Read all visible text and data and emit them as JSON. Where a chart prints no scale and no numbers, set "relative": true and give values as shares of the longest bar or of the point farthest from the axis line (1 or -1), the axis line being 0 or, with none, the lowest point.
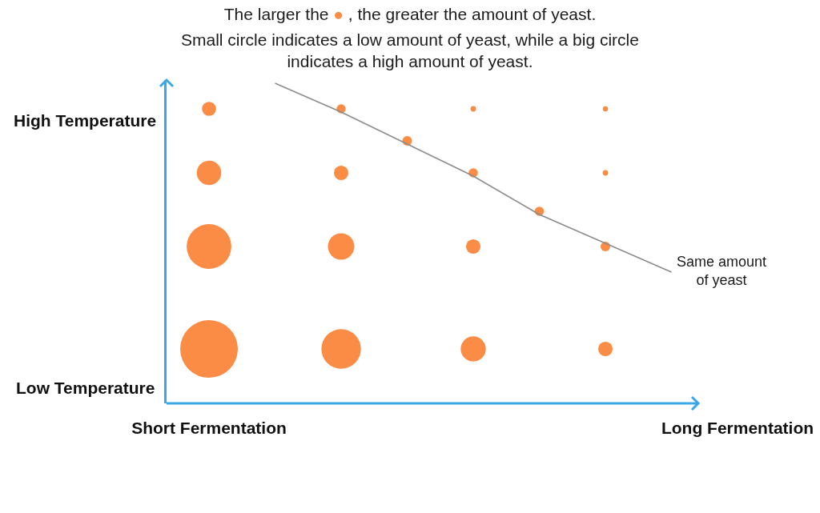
{
  "chart_data": {
    "type": "bubble",
    "relative": true,
    "title": "The larger the ● , the greater the amount of yeast.",
    "subtitle": "Small circle indicates a low amount of yeast, while a big circle indicates a high amount of yeast.",
    "annotations": [
      "High Temperature",
      "Low Temperature"
    ],
    "categories": [
      "Short Fermentation",
      null,
      null,
      null,
      null,
      null,
      null,
      null,
      "Long Fermentation"
    ],
    "series": [
      {
        "color": "#fa8c45",
        "values": [
          0.92,
          null,
          0.92,
          null,
          0.92,
          null,
          0.92,
          null,
          null
        ],
        "sizes": [
          0.06,
          null,
          0.025,
          null,
          0.009,
          null,
          0.008,
          null,
          null
        ]
      },
      {
        "color": "#fa8c45",
        "values": [
          0.72,
          null,
          0.72,
          null,
          0.72,
          null,
          0.72,
          null,
          null
        ],
        "sizes": [
          0.18,
          null,
          0.063,
          null,
          0.026,
          null,
          0.009,
          null,
          null
        ]
      },
      {
        "color": "#fa8c45",
        "values": [
          0.49,
          null,
          0.49,
          null,
          0.49,
          null,
          0.49,
          null,
          null
        ],
        "sizes": [
          0.6,
          null,
          0.21,
          null,
          0.063,
          null,
          0.028,
          null,
          null
        ]
      },
      {
        "color": "#fa8c45",
        "values": [
          0.17,
          null,
          0.17,
          null,
          0.17,
          null,
          0.17,
          null,
          null
        ],
        "sizes": [
          1,
          null,
          0.47,
          null,
          0.19,
          null,
          0.063,
          null,
          null
        ]
      },
      {
        "color": "#fa8c45",
        "values": [
          null,
          null,
          null,
          0.82,
          null,
          0.6,
          null,
          null,
          null
        ],
        "sizes": [
          null,
          null,
          null,
          0.028,
          null,
          0.026,
          null,
          null,
          null
        ]
      },
      {
        "type": "line",
        "name": "Same amount of yeast",
        "color": "#8c8c8c",
        "values": [
          null,
          1.0,
          0.91,
          0.81,
          0.71,
          0.59,
          0.5,
          0.41,
          null
        ]
      }
    ]
  }
}
